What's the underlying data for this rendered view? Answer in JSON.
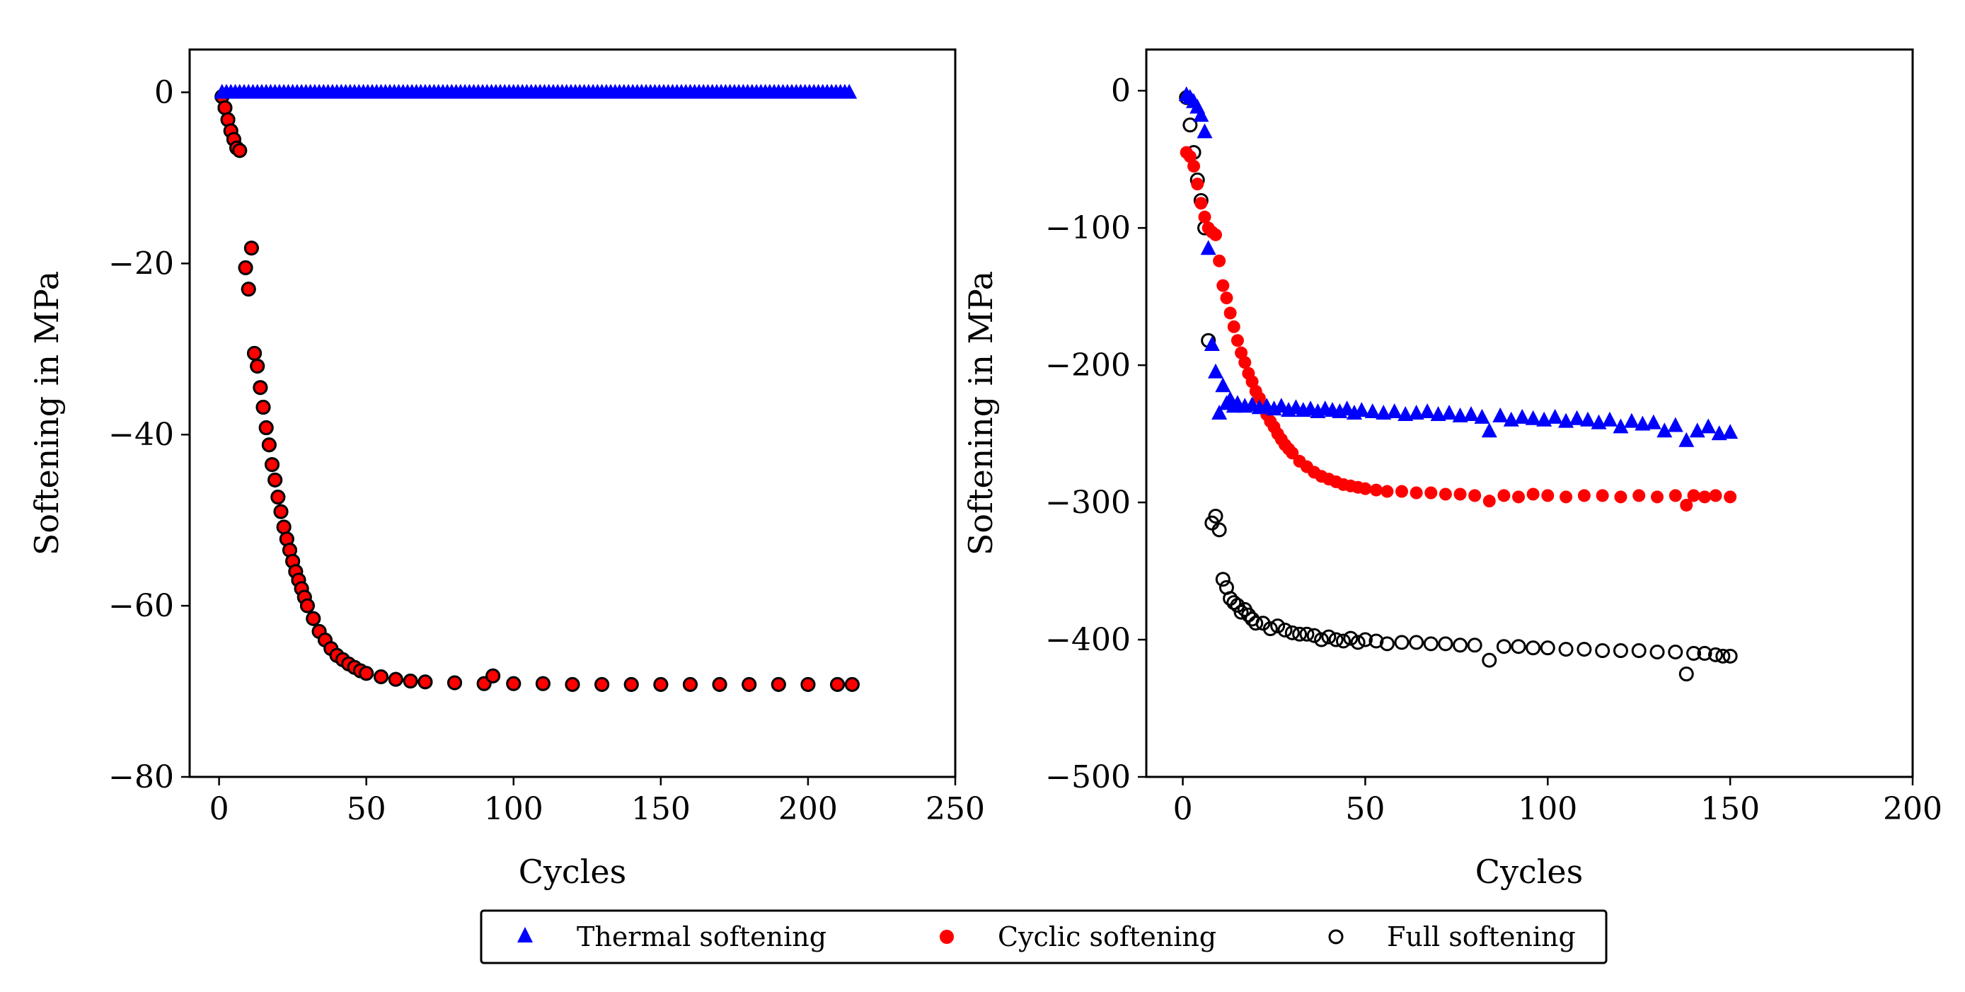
{
  "figure": {
    "colors": {
      "thermal": "#0000ff",
      "cyclic": "#ff0000",
      "full": "#000000",
      "background": "#ffffff"
    }
  },
  "chart_data": [
    {
      "type": "scatter",
      "title": "",
      "xlabel": "Cycles",
      "ylabel": "Softening in MPa",
      "xlim": [
        -10,
        250
      ],
      "ylim": [
        -80,
        5
      ],
      "xticks": [
        0,
        50,
        100,
        150,
        200,
        250
      ],
      "yticks": [
        0,
        -20,
        -40,
        -60,
        -80
      ],
      "xtick_labels": [
        "0",
        "50",
        "100",
        "150",
        "200",
        "250"
      ],
      "ytick_labels": [
        "0",
        "−20",
        "−40",
        "−60",
        "−80"
      ],
      "series": [
        {
          "name": "Thermal softening",
          "marker": "triangle",
          "color": "#0000ff",
          "description": "constant 0 for all cycles",
          "x_range": [
            1,
            215
          ],
          "constant_value": 0
        },
        {
          "name": "Cyclic softening",
          "marker": "filled-circle",
          "color": "#ff0000",
          "x": [
            1,
            2,
            3,
            4,
            5,
            6,
            7,
            9,
            10,
            11,
            12,
            13,
            14,
            15,
            16,
            17,
            18,
            19,
            20,
            21,
            22,
            23,
            24,
            25,
            26,
            27,
            28,
            29,
            30,
            32,
            34,
            36,
            38,
            40,
            42,
            44,
            46,
            48,
            50,
            55,
            60,
            65,
            70,
            80,
            90,
            93,
            100,
            110,
            120,
            130,
            140,
            150,
            160,
            170,
            180,
            190,
            200,
            210,
            215
          ],
          "y": [
            -0.5,
            -1.8,
            -3.2,
            -4.5,
            -5.5,
            -6.5,
            -6.8,
            -20.5,
            -23,
            -18.2,
            -30.5,
            -32,
            -34.5,
            -36.8,
            -39.2,
            -41.2,
            -43.5,
            -45.3,
            -47.3,
            -49,
            -50.8,
            -52.2,
            -53.5,
            -54.8,
            -56,
            -57,
            -58,
            -59,
            -60,
            -61.5,
            -63,
            -64,
            -65,
            -65.8,
            -66.3,
            -66.8,
            -67.2,
            -67.6,
            -67.9,
            -68.3,
            -68.6,
            -68.8,
            -68.9,
            -69,
            -69.1,
            -68.2,
            -69.1,
            -69.1,
            -69.2,
            -69.2,
            -69.2,
            -69.2,
            -69.2,
            -69.2,
            -69.2,
            -69.2,
            -69.2,
            -69.2,
            -69.2
          ]
        },
        {
          "name": "Full softening",
          "marker": "open-circle",
          "color": "#000000",
          "description": "coincides with cyclic softening",
          "same_as": "Cyclic softening"
        }
      ]
    },
    {
      "type": "scatter",
      "title": "",
      "xlabel": "Cycles",
      "ylabel": "Softening in MPa",
      "xlim": [
        -10,
        200
      ],
      "ylim": [
        -500,
        30
      ],
      "xticks": [
        0,
        50,
        100,
        150,
        200
      ],
      "yticks": [
        0,
        -100,
        -200,
        -300,
        -400,
        -500
      ],
      "xtick_labels": [
        "0",
        "50",
        "100",
        "150",
        "200"
      ],
      "ytick_labels": [
        "0",
        "−100",
        "−200",
        "−300",
        "−400",
        "−500"
      ],
      "series": [
        {
          "name": "Thermal softening",
          "marker": "triangle",
          "color": "#0000ff",
          "x": [
            1,
            2,
            3,
            4,
            5,
            6,
            7,
            8,
            9,
            10,
            11,
            12,
            13,
            14,
            15,
            17,
            19,
            21,
            23,
            25,
            27,
            29,
            31,
            33,
            35,
            37,
            39,
            41,
            43,
            45,
            47,
            49,
            52,
            55,
            58,
            61,
            64,
            67,
            70,
            73,
            76,
            79,
            82,
            84,
            87,
            90,
            93,
            96,
            99,
            102,
            105,
            108,
            111,
            114,
            117,
            120,
            123,
            126,
            129,
            132,
            135,
            138,
            141,
            144,
            147,
            150
          ],
          "y": [
            -3,
            -5,
            -8,
            -12,
            -18,
            -30,
            -115,
            -185,
            -205,
            -235,
            -215,
            -228,
            -225,
            -230,
            -228,
            -230,
            -229,
            -231,
            -230,
            -232,
            -230,
            -233,
            -231,
            -233,
            -232,
            -234,
            -232,
            -233,
            -234,
            -232,
            -235,
            -233,
            -234,
            -235,
            -234,
            -236,
            -235,
            -234,
            -236,
            -235,
            -237,
            -236,
            -238,
            -248,
            -237,
            -240,
            -238,
            -239,
            -240,
            -238,
            -241,
            -239,
            -240,
            -242,
            -240,
            -245,
            -241,
            -243,
            -242,
            -248,
            -244,
            -255,
            -248,
            -245,
            -250,
            -249
          ]
        },
        {
          "name": "Cyclic softening",
          "marker": "filled-circle",
          "color": "#ff0000",
          "x": [
            1,
            2,
            3,
            4,
            5,
            6,
            7,
            8,
            9,
            10,
            11,
            12,
            13,
            14,
            15,
            16,
            17,
            18,
            19,
            20,
            21,
            22,
            23,
            24,
            25,
            26,
            27,
            28,
            29,
            30,
            32,
            34,
            36,
            38,
            40,
            42,
            44,
            46,
            48,
            50,
            53,
            56,
            60,
            64,
            68,
            72,
            76,
            80,
            84,
            88,
            92,
            96,
            100,
            105,
            110,
            115,
            120,
            125,
            130,
            135,
            138,
            140,
            143,
            146,
            150
          ],
          "y": [
            -45,
            -48,
            -55,
            -68,
            -82,
            -92,
            -100,
            -103,
            -105,
            -124,
            -142,
            -151,
            -162,
            -172,
            -182,
            -191,
            -198,
            -206,
            -212,
            -219,
            -224,
            -230,
            -236,
            -241,
            -245,
            -250,
            -254,
            -258,
            -261,
            -264,
            -270,
            -274,
            -278,
            -281,
            -283,
            -285,
            -287,
            -288,
            -289,
            -290,
            -291,
            -292,
            -292,
            -293,
            -293,
            -294,
            -294,
            -295,
            -299,
            -295,
            -296,
            -294,
            -295,
            -296,
            -295,
            -295,
            -296,
            -295,
            -296,
            -295,
            -302,
            -295,
            -296,
            -295,
            -296
          ]
        },
        {
          "name": "Full softening",
          "marker": "open-circle",
          "color": "#000000",
          "x": [
            1,
            2,
            3,
            4,
            5,
            6,
            7,
            8,
            9,
            10,
            11,
            12,
            13,
            14,
            15,
            16,
            17,
            18,
            19,
            20,
            22,
            24,
            26,
            28,
            30,
            32,
            34,
            36,
            38,
            40,
            42,
            44,
            46,
            48,
            50,
            53,
            56,
            60,
            64,
            68,
            72,
            76,
            80,
            84,
            88,
            92,
            96,
            100,
            105,
            110,
            115,
            120,
            125,
            130,
            135,
            138,
            140,
            143,
            146,
            148,
            150
          ],
          "y": [
            -5,
            -25,
            -45,
            -65,
            -80,
            -100,
            -182,
            -315,
            -310,
            -320,
            -356,
            -362,
            -370,
            -373,
            -375,
            -380,
            -378,
            -382,
            -385,
            -388,
            -388,
            -392,
            -390,
            -393,
            -395,
            -396,
            -396,
            -397,
            -400,
            -398,
            -400,
            -401,
            -399,
            -402,
            -400,
            -401,
            -403,
            -402,
            -402,
            -403,
            -403,
            -404,
            -404,
            -415,
            -405,
            -405,
            -406,
            -406,
            -407,
            -407,
            -408,
            -408,
            -408,
            -409,
            -409,
            -425,
            -410,
            -410,
            -411,
            -412,
            -412
          ]
        }
      ]
    }
  ],
  "legend": {
    "entries": [
      "Thermal softening",
      "Cyclic softening",
      "Full softening"
    ]
  }
}
